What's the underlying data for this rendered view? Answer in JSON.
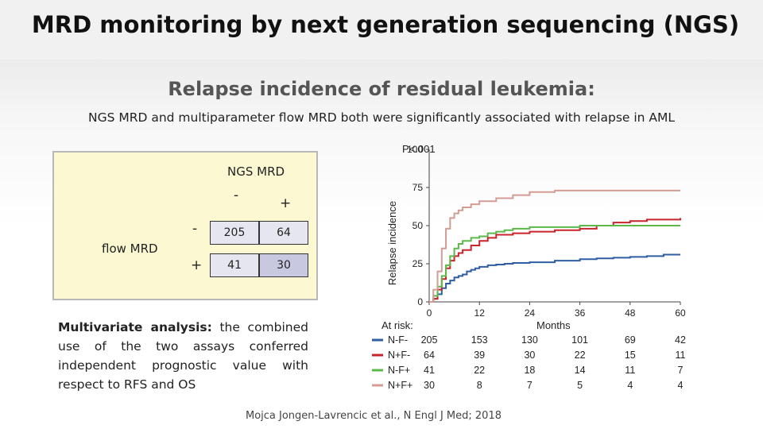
{
  "slide": {
    "title": "MRD monitoring by next generation sequencing (NGS)",
    "subtitle": "Relapse incidence of residual leukemia:",
    "summary": "NGS MRD and multiparameter flow MRD both were significantly associated with relapse in AML",
    "citation": "Mojca Jongen-Lavrencic et al., N Engl J Med; 2018"
  },
  "contingency": {
    "col_header": "NGS MRD",
    "row_header": "flow MRD",
    "col_minus": "-",
    "col_plus": "+",
    "row_minus": "-",
    "row_plus": "+",
    "cells": {
      "mm": "205",
      "mp": "64",
      "pm": "41",
      "pp": "30"
    }
  },
  "multivariate": {
    "lead": "Multivariate analysis:",
    "text": " the combined use of the two assays conferred independent prognostic value with respect to RFS and OS"
  },
  "chart_data": {
    "type": "line",
    "title": "",
    "annotation": "P<.001",
    "xlabel": "Months",
    "ylabel": "Relapse incidence",
    "xlim": [
      0,
      60
    ],
    "ylim": [
      0,
      100
    ],
    "xticks": [
      "0",
      "12",
      "24",
      "36",
      "48",
      "60"
    ],
    "yticks": [
      "0",
      "25",
      "50",
      "75",
      "100"
    ],
    "at_risk_label": "At risk:",
    "series": [
      {
        "name": "N-F-",
        "color": "#2f5ea3",
        "points": [
          [
            0,
            0
          ],
          [
            1,
            2
          ],
          [
            2,
            5
          ],
          [
            3,
            9
          ],
          [
            4,
            12
          ],
          [
            5,
            14
          ],
          [
            6,
            16
          ],
          [
            7,
            17
          ],
          [
            8,
            18
          ],
          [
            9,
            20
          ],
          [
            10,
            21
          ],
          [
            11,
            22
          ],
          [
            12,
            23
          ],
          [
            14,
            24
          ],
          [
            16,
            24.5
          ],
          [
            18,
            25
          ],
          [
            20,
            25.5
          ],
          [
            24,
            26
          ],
          [
            30,
            27
          ],
          [
            36,
            28
          ],
          [
            40,
            28.5
          ],
          [
            44,
            29
          ],
          [
            48,
            29.5
          ],
          [
            52,
            30
          ],
          [
            56,
            31
          ],
          [
            60,
            31
          ]
        ],
        "at_risk": [
          "205",
          "153",
          "130",
          "101",
          "69",
          "42"
        ]
      },
      {
        "name": "N+F-",
        "color": "#c8242b",
        "points": [
          [
            0,
            0
          ],
          [
            1,
            2
          ],
          [
            2,
            8
          ],
          [
            3,
            15
          ],
          [
            4,
            22
          ],
          [
            5,
            27
          ],
          [
            6,
            30
          ],
          [
            7,
            32
          ],
          [
            8,
            34
          ],
          [
            10,
            37
          ],
          [
            12,
            40
          ],
          [
            14,
            42
          ],
          [
            16,
            44
          ],
          [
            20,
            45
          ],
          [
            24,
            46
          ],
          [
            30,
            47
          ],
          [
            36,
            48
          ],
          [
            40,
            50
          ],
          [
            44,
            52
          ],
          [
            48,
            53
          ],
          [
            52,
            54
          ],
          [
            60,
            55
          ]
        ],
        "at_risk": [
          "64",
          "39",
          "30",
          "22",
          "15",
          "11"
        ]
      },
      {
        "name": "N-F+",
        "color": "#5cb84a",
        "points": [
          [
            0,
            0
          ],
          [
            1,
            4
          ],
          [
            2,
            10
          ],
          [
            3,
            17
          ],
          [
            4,
            24
          ],
          [
            5,
            30
          ],
          [
            6,
            35
          ],
          [
            7,
            38
          ],
          [
            8,
            40
          ],
          [
            10,
            42
          ],
          [
            12,
            43
          ],
          [
            14,
            45
          ],
          [
            16,
            46
          ],
          [
            18,
            47
          ],
          [
            20,
            48
          ],
          [
            24,
            49
          ],
          [
            36,
            50
          ],
          [
            60,
            50
          ]
        ],
        "at_risk": [
          "41",
          "22",
          "18",
          "14",
          "11",
          "7"
        ]
      },
      {
        "name": "N+F+",
        "color": "#d39c94",
        "points": [
          [
            0,
            0
          ],
          [
            1,
            8
          ],
          [
            2,
            20
          ],
          [
            3,
            35
          ],
          [
            4,
            48
          ],
          [
            5,
            55
          ],
          [
            6,
            58
          ],
          [
            7,
            60
          ],
          [
            8,
            62
          ],
          [
            10,
            64
          ],
          [
            12,
            66
          ],
          [
            16,
            68
          ],
          [
            20,
            70
          ],
          [
            24,
            72
          ],
          [
            30,
            73
          ],
          [
            36,
            73
          ],
          [
            48,
            73
          ],
          [
            60,
            73
          ]
        ],
        "at_risk": [
          "30",
          "8",
          "7",
          "5",
          "4",
          "4"
        ]
      }
    ]
  }
}
